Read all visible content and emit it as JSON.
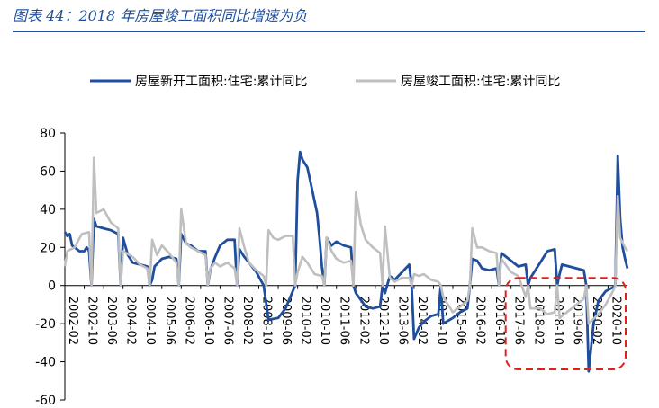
{
  "title": "图表 44：2018 年房屋竣工面积同比增速为负",
  "colors": {
    "title": "#1f4e9c",
    "series_new": "#1f4e9c",
    "series_done": "#bfbfbf",
    "highlight": "#e0201b"
  },
  "chart_data": {
    "type": "line",
    "title": "",
    "xlabel": "",
    "ylabel": "",
    "ylim": [
      -60,
      80
    ],
    "yticks": [
      -60,
      -40,
      -20,
      0,
      20,
      40,
      60,
      80
    ],
    "x_tick_labels": [
      "2002-02",
      "2002-10",
      "2003-06",
      "2004-02",
      "2004-10",
      "2005-06",
      "2006-02",
      "2006-10",
      "2007-06",
      "2008-02",
      "2008-10",
      "2009-06",
      "2010-02",
      "2010-10",
      "2011-06",
      "2012-02",
      "2012-10",
      "2013-06",
      "2014-02",
      "2014-10",
      "2015-06",
      "2016-02",
      "2016-10",
      "2017-06",
      "2018-02",
      "2018-10",
      "2019-06",
      "2020-02",
      "2020-10"
    ],
    "x_start": "2002-02",
    "x_end": "2021-06",
    "legend_position": "top",
    "annotation": "red dashed box highlighting 2017-06 to 2021-06",
    "series": [
      {
        "name": "房屋新开工面积:住宅:累计同比",
        "color": "#1f4e9c",
        "points": [
          [
            "2002-02",
            28
          ],
          [
            "2002-03",
            26
          ],
          [
            "2002-04",
            27
          ],
          [
            "2002-05",
            21
          ],
          [
            "2002-06",
            20
          ],
          [
            "2002-08",
            18
          ],
          [
            "2002-10",
            18
          ],
          [
            "2002-11",
            20
          ],
          [
            "2002-12",
            18
          ],
          [
            "2003-01",
            0
          ],
          [
            "2003-02",
            35
          ],
          [
            "2003-03",
            31
          ],
          [
            "2003-06",
            30
          ],
          [
            "2003-09",
            29
          ],
          [
            "2003-12",
            27
          ],
          [
            "2004-01",
            0
          ],
          [
            "2004-02",
            25
          ],
          [
            "2004-04",
            16
          ],
          [
            "2004-06",
            12
          ],
          [
            "2004-09",
            11
          ],
          [
            "2004-12",
            10
          ],
          [
            "2005-01",
            0
          ],
          [
            "2005-02",
            3
          ],
          [
            "2005-03",
            10
          ],
          [
            "2005-06",
            14
          ],
          [
            "2005-09",
            15
          ],
          [
            "2005-12",
            14
          ],
          [
            "2006-01",
            0
          ],
          [
            "2006-02",
            27
          ],
          [
            "2006-04",
            22
          ],
          [
            "2006-06",
            21
          ],
          [
            "2006-09",
            18
          ],
          [
            "2006-12",
            18
          ],
          [
            "2007-01",
            0
          ],
          [
            "2007-02",
            8
          ],
          [
            "2007-04",
            15
          ],
          [
            "2007-06",
            21
          ],
          [
            "2007-09",
            24
          ],
          [
            "2007-12",
            24
          ],
          [
            "2008-01",
            0
          ],
          [
            "2008-02",
            19
          ],
          [
            "2008-04",
            15
          ],
          [
            "2008-06",
            12
          ],
          [
            "2008-09",
            7
          ],
          [
            "2008-12",
            0
          ],
          [
            "2009-02",
            -18
          ],
          [
            "2009-06",
            -17
          ],
          [
            "2009-09",
            -12
          ],
          [
            "2009-12",
            -3
          ],
          [
            "2010-01",
            0
          ],
          [
            "2010-02",
            55
          ],
          [
            "2010-03",
            70
          ],
          [
            "2010-04",
            66
          ],
          [
            "2010-06",
            62
          ],
          [
            "2010-08",
            50
          ],
          [
            "2010-10",
            38
          ],
          [
            "2010-11",
            25
          ],
          [
            "2010-12",
            10
          ],
          [
            "2011-01",
            0
          ],
          [
            "2011-02",
            25
          ],
          [
            "2011-04",
            21
          ],
          [
            "2011-06",
            23
          ],
          [
            "2011-09",
            21
          ],
          [
            "2011-12",
            20
          ],
          [
            "2012-01",
            0
          ],
          [
            "2012-02",
            -4
          ],
          [
            "2012-06",
            -11
          ],
          [
            "2012-09",
            -12
          ],
          [
            "2012-12",
            -11
          ],
          [
            "2013-01",
            0
          ],
          [
            "2013-02",
            -4
          ],
          [
            "2013-04",
            5
          ],
          [
            "2013-06",
            3
          ],
          [
            "2013-09",
            7
          ],
          [
            "2013-12",
            11
          ],
          [
            "2014-01",
            0
          ],
          [
            "2014-02",
            -28
          ],
          [
            "2014-04",
            -22
          ],
          [
            "2014-06",
            -19
          ],
          [
            "2014-09",
            -16
          ],
          [
            "2014-12",
            -15
          ],
          [
            "2015-01",
            0
          ],
          [
            "2015-02",
            -20
          ],
          [
            "2015-06",
            -17
          ],
          [
            "2015-09",
            -14
          ],
          [
            "2015-12",
            -12
          ],
          [
            "2016-01",
            0
          ],
          [
            "2016-02",
            14
          ],
          [
            "2016-04",
            13
          ],
          [
            "2016-06",
            9
          ],
          [
            "2016-09",
            8
          ],
          [
            "2016-12",
            9
          ],
          [
            "2017-01",
            0
          ],
          [
            "2017-02",
            17
          ],
          [
            "2017-04",
            15
          ],
          [
            "2017-06",
            13
          ],
          [
            "2017-09",
            10
          ],
          [
            "2017-12",
            11
          ],
          [
            "2018-01",
            0
          ],
          [
            "2018-02",
            4
          ],
          [
            "2018-04",
            8
          ],
          [
            "2018-06",
            12
          ],
          [
            "2018-09",
            18
          ],
          [
            "2018-12",
            19
          ],
          [
            "2019-01",
            0
          ],
          [
            "2019-02",
            6
          ],
          [
            "2019-03",
            11
          ],
          [
            "2019-06",
            10
          ],
          [
            "2019-09",
            9
          ],
          [
            "2019-12",
            8
          ],
          [
            "2020-01",
            0
          ],
          [
            "2020-02",
            -45
          ],
          [
            "2020-04",
            -20
          ],
          [
            "2020-06",
            -8
          ],
          [
            "2020-09",
            -3
          ],
          [
            "2020-12",
            -1
          ],
          [
            "2021-01",
            0
          ],
          [
            "2021-02",
            68
          ],
          [
            "2021-03",
            35
          ],
          [
            "2021-04",
            20
          ],
          [
            "2021-05",
            14
          ],
          [
            "2021-06",
            9
          ]
        ]
      },
      {
        "name": "房屋竣工面积:住宅:累计同比",
        "color": "#bfbfbf",
        "points": [
          [
            "2002-02",
            10
          ],
          [
            "2002-03",
            18
          ],
          [
            "2002-06",
            20
          ],
          [
            "2002-09",
            27
          ],
          [
            "2002-12",
            28
          ],
          [
            "2003-01",
            0
          ],
          [
            "2003-02",
            67
          ],
          [
            "2003-03",
            38
          ],
          [
            "2003-06",
            40
          ],
          [
            "2003-09",
            33
          ],
          [
            "2003-12",
            30
          ],
          [
            "2004-01",
            0
          ],
          [
            "2004-02",
            18
          ],
          [
            "2004-06",
            15
          ],
          [
            "2004-09",
            11
          ],
          [
            "2004-12",
            9
          ],
          [
            "2005-01",
            0
          ],
          [
            "2005-02",
            24
          ],
          [
            "2005-04",
            16
          ],
          [
            "2005-06",
            21
          ],
          [
            "2005-09",
            17
          ],
          [
            "2005-12",
            12
          ],
          [
            "2006-01",
            0
          ],
          [
            "2006-02",
            40
          ],
          [
            "2006-04",
            22
          ],
          [
            "2006-06",
            20
          ],
          [
            "2006-09",
            18
          ],
          [
            "2006-12",
            16
          ],
          [
            "2007-01",
            0
          ],
          [
            "2007-02",
            9
          ],
          [
            "2007-04",
            12
          ],
          [
            "2007-06",
            10
          ],
          [
            "2007-09",
            12
          ],
          [
            "2007-12",
            9
          ],
          [
            "2008-01",
            0
          ],
          [
            "2008-02",
            30
          ],
          [
            "2008-04",
            20
          ],
          [
            "2008-06",
            12
          ],
          [
            "2008-09",
            8
          ],
          [
            "2008-12",
            5
          ],
          [
            "2009-01",
            0
          ],
          [
            "2009-02",
            29
          ],
          [
            "2009-04",
            25
          ],
          [
            "2009-06",
            24
          ],
          [
            "2009-09",
            26
          ],
          [
            "2009-12",
            26
          ],
          [
            "2010-01",
            0
          ],
          [
            "2010-02",
            7
          ],
          [
            "2010-04",
            15
          ],
          [
            "2010-06",
            12
          ],
          [
            "2010-09",
            6
          ],
          [
            "2010-12",
            5
          ],
          [
            "2011-01",
            0
          ],
          [
            "2011-02",
            25
          ],
          [
            "2011-04",
            18
          ],
          [
            "2011-06",
            14
          ],
          [
            "2011-09",
            12
          ],
          [
            "2011-12",
            13
          ],
          [
            "2012-01",
            0
          ],
          [
            "2012-02",
            49
          ],
          [
            "2012-04",
            32
          ],
          [
            "2012-06",
            24
          ],
          [
            "2012-09",
            20
          ],
          [
            "2012-12",
            17
          ],
          [
            "2013-01",
            0
          ],
          [
            "2013-02",
            31
          ],
          [
            "2013-04",
            4
          ],
          [
            "2013-06",
            2
          ],
          [
            "2013-09",
            4
          ],
          [
            "2013-12",
            4
          ],
          [
            "2014-01",
            0
          ],
          [
            "2014-02",
            6
          ],
          [
            "2014-04",
            5
          ],
          [
            "2014-06",
            6
          ],
          [
            "2014-09",
            3
          ],
          [
            "2014-12",
            2
          ],
          [
            "2015-01",
            0
          ],
          [
            "2015-02",
            -6
          ],
          [
            "2015-06",
            -14
          ],
          [
            "2015-09",
            -11
          ],
          [
            "2015-12",
            -8
          ],
          [
            "2016-01",
            0
          ],
          [
            "2016-02",
            30
          ],
          [
            "2016-04",
            20
          ],
          [
            "2016-06",
            20
          ],
          [
            "2016-09",
            18
          ],
          [
            "2016-12",
            17
          ],
          [
            "2017-01",
            0
          ],
          [
            "2017-02",
            14
          ],
          [
            "2017-06",
            7
          ],
          [
            "2017-09",
            5
          ],
          [
            "2017-12",
            -6
          ],
          [
            "2018-01",
            0
          ],
          [
            "2018-02",
            -12
          ],
          [
            "2018-06",
            -12
          ],
          [
            "2018-09",
            -15
          ],
          [
            "2018-12",
            -14
          ],
          [
            "2019-01",
            0
          ],
          [
            "2019-02",
            -17
          ],
          [
            "2019-06",
            -13
          ],
          [
            "2019-09",
            -10
          ],
          [
            "2019-12",
            -7
          ],
          [
            "2020-01",
            0
          ],
          [
            "2020-02",
            -20
          ],
          [
            "2020-06",
            -15
          ],
          [
            "2020-09",
            -10
          ],
          [
            "2020-12",
            -3
          ],
          [
            "2021-01",
            0
          ],
          [
            "2021-02",
            47
          ],
          [
            "2021-03",
            25
          ],
          [
            "2021-05",
            20
          ],
          [
            "2021-06",
            18
          ]
        ]
      }
    ]
  }
}
